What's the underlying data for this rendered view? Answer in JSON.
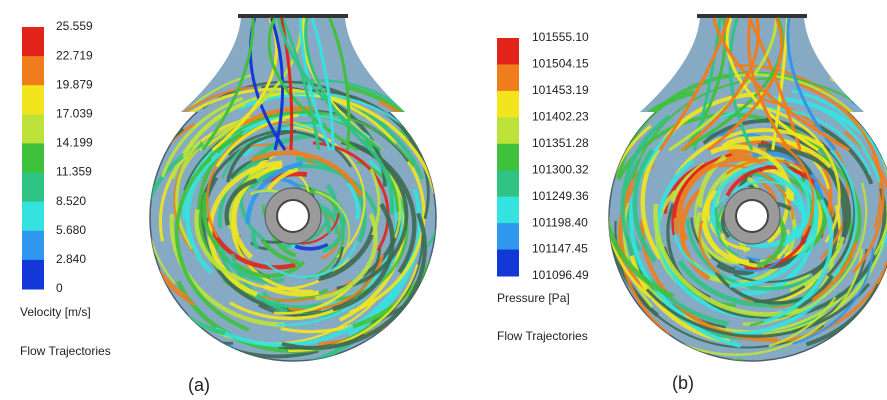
{
  "panels": [
    {
      "label": "(a)",
      "legend": {
        "ticks": [
          "25.559",
          "22.719",
          "19.879",
          "17.039",
          "14.199",
          "11.359",
          "8.520",
          "5.680",
          "2.840",
          "0"
        ],
        "quantity": "Velocity [m/s]",
        "mode": "Flow Trajectories"
      }
    },
    {
      "label": "(b)",
      "legend": {
        "ticks": [
          "101555.10",
          "101504.15",
          "101453.19",
          "101402.23",
          "101351.28",
          "101300.32",
          "101249.36",
          "101198.40",
          "101147.45",
          "101096.49"
        ],
        "quantity": "Pressure [Pa]",
        "mode": "Flow Trajectories"
      }
    }
  ]
}
